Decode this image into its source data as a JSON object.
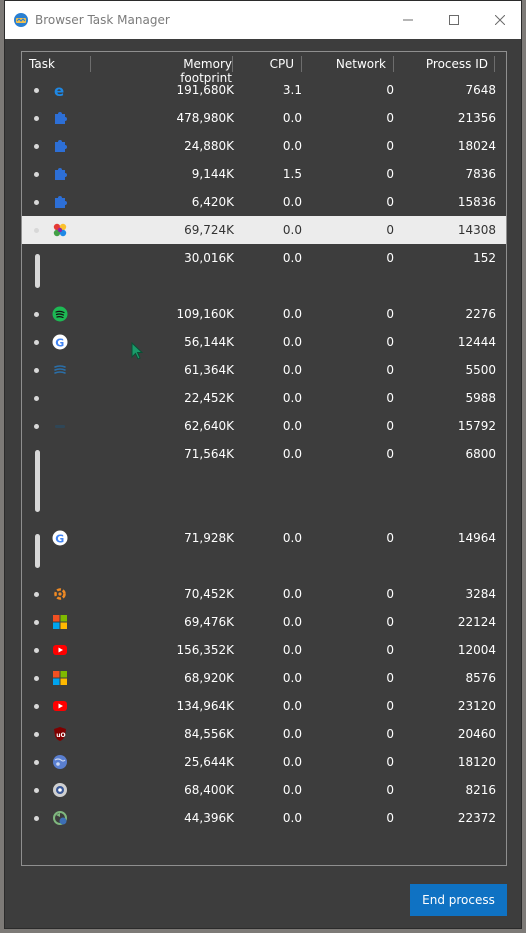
{
  "window": {
    "title": "Browser Task Manager"
  },
  "columns": {
    "task": "Task",
    "memory": "Memory footprint",
    "cpu": "CPU",
    "network": "Network",
    "pid": "Process ID"
  },
  "rows": [
    {
      "icon": "edge-icon",
      "memory": "191,680K",
      "cpu": "3.1",
      "network": "0",
      "pid": "7648"
    },
    {
      "icon": "extension-icon",
      "memory": "478,980K",
      "cpu": "0.0",
      "network": "0",
      "pid": "21356"
    },
    {
      "icon": "extension-icon",
      "memory": "24,880K",
      "cpu": "0.0",
      "network": "0",
      "pid": "18024"
    },
    {
      "icon": "extension-icon",
      "memory": "9,144K",
      "cpu": "1.5",
      "network": "0",
      "pid": "7836"
    },
    {
      "icon": "extension-icon",
      "memory": "6,420K",
      "cpu": "0.0",
      "network": "0",
      "pid": "15836"
    },
    {
      "icon": "colorful-flower-icon",
      "memory": "69,724K",
      "cpu": "0.0",
      "network": "0",
      "pid": "14308",
      "selected": true
    },
    {
      "icon": "",
      "memory": "30,016K",
      "cpu": "0.0",
      "network": "0",
      "pid": "152"
    },
    {
      "icon": "spotify-icon",
      "memory": "109,160K",
      "cpu": "0.0",
      "network": "0",
      "pid": "2276"
    },
    {
      "icon": "google-icon",
      "memory": "56,144K",
      "cpu": "0.0",
      "network": "0",
      "pid": "12444"
    },
    {
      "icon": "stack-icon",
      "memory": "61,364K",
      "cpu": "0.0",
      "network": "0",
      "pid": "5500"
    },
    {
      "icon": "",
      "memory": "22,452K",
      "cpu": "0.0",
      "network": "0",
      "pid": "5988"
    },
    {
      "icon": "dim-app-icon",
      "memory": "62,640K",
      "cpu": "0.0",
      "network": "0",
      "pid": "15792"
    },
    {
      "icon": "",
      "memory": "71,564K",
      "cpu": "0.0",
      "network": "0",
      "pid": "6800"
    },
    {
      "icon": "google-icon",
      "memory": "71,928K",
      "cpu": "0.0",
      "network": "0",
      "pid": "14964"
    },
    {
      "icon": "orange-gear-icon",
      "memory": "70,452K",
      "cpu": "0.0",
      "network": "0",
      "pid": "3284"
    },
    {
      "icon": "microsoft-icon",
      "memory": "69,476K",
      "cpu": "0.0",
      "network": "0",
      "pid": "22124"
    },
    {
      "icon": "youtube-icon",
      "memory": "156,352K",
      "cpu": "0.0",
      "network": "0",
      "pid": "12004"
    },
    {
      "icon": "microsoft-icon",
      "memory": "68,920K",
      "cpu": "0.0",
      "network": "0",
      "pid": "8576"
    },
    {
      "icon": "youtube-icon",
      "memory": "134,964K",
      "cpu": "0.0",
      "network": "0",
      "pid": "23120"
    },
    {
      "icon": "ublock-icon",
      "memory": "84,556K",
      "cpu": "0.0",
      "network": "0",
      "pid": "20460"
    },
    {
      "icon": "globe-icon",
      "memory": "25,644K",
      "cpu": "0.0",
      "network": "0",
      "pid": "18120"
    },
    {
      "icon": "eye-icon",
      "memory": "68,400K",
      "cpu": "0.0",
      "network": "0",
      "pid": "8216"
    },
    {
      "icon": "recycle-icon",
      "memory": "44,396K",
      "cpu": "0.0",
      "network": "0",
      "pid": "22372"
    }
  ],
  "buttons": {
    "end_process": "End process"
  },
  "colors": {
    "accent": "#0f72c3",
    "panel_bg": "#3d3d3d",
    "selected_row": "#ececec"
  }
}
